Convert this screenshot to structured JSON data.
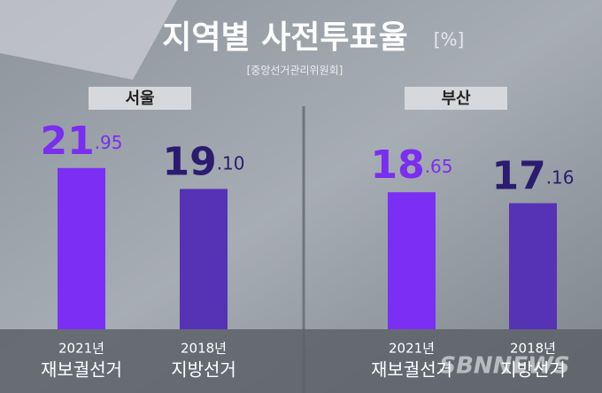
{
  "header": {
    "title": "지역별 사전투표율",
    "unit": "[%]",
    "source": "[중앙선거관리위원회]",
    "watermark": "SBNNEWS"
  },
  "chart_data": [
    {
      "type": "bar",
      "title": "서울",
      "categories": [
        [
          "2021년",
          "재보궐선거"
        ],
        [
          "2018년",
          "지방선거"
        ]
      ],
      "values": [
        21.95,
        19.1
      ],
      "value_labels": [
        "21.95",
        "19.10"
      ],
      "colors": [
        "#7b2ff5",
        "#5632b5"
      ],
      "label_colors": [
        "#7a2ef0",
        "#2b1c70"
      ]
    },
    {
      "type": "bar",
      "title": "부산",
      "categories": [
        [
          "2021년",
          "재보궐선거"
        ],
        [
          "2018년",
          "지방선거"
        ]
      ],
      "values": [
        18.65,
        17.16
      ],
      "value_labels": [
        "18.65",
        "17.16"
      ],
      "colors": [
        "#7b2ff5",
        "#5632b5"
      ],
      "label_colors": [
        "#7a2ef0",
        "#2b1c70"
      ]
    }
  ]
}
